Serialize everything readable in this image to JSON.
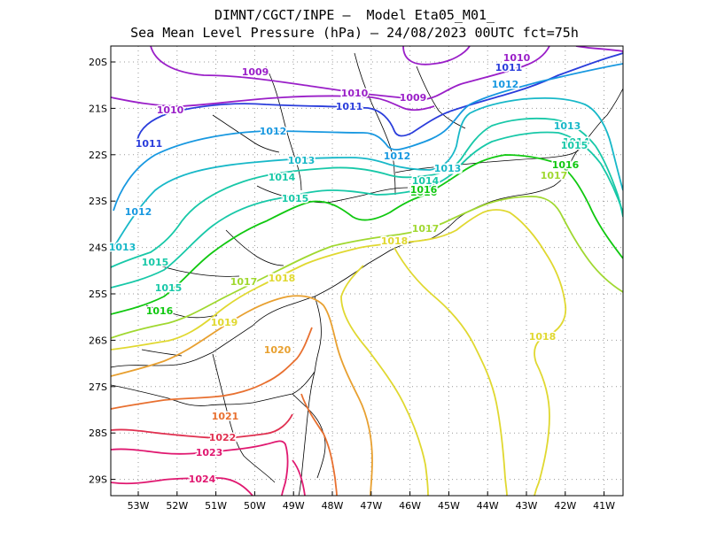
{
  "header": {
    "line1": "DIMNT/CGCT/INPE –  Model Eta05_M01_",
    "line2": "Sea Mean Level Pressure (hPa) – 24/08/2023 00UTC fct=75h"
  },
  "axes": {
    "lat_labels": [
      "20S",
      "21S",
      "22S",
      "23S",
      "24S",
      "25S",
      "26S",
      "27S",
      "28S",
      "29S"
    ],
    "lon_labels": [
      "53W",
      "52W",
      "51W",
      "50W",
      "49W",
      "48W",
      "47W",
      "46W",
      "45W",
      "44W",
      "43W",
      "42W",
      "41W"
    ]
  },
  "contour_labels": [
    {
      "text": "1010",
      "color": "#9a1fc8"
    },
    {
      "text": "1011",
      "color": "#2a3ddb"
    },
    {
      "text": "1009",
      "color": "#9a1fc8"
    },
    {
      "text": "1010",
      "color": "#9a1fc8"
    },
    {
      "text": "1010",
      "color": "#9a1fc8"
    },
    {
      "text": "1009",
      "color": "#9a1fc8"
    },
    {
      "text": "1011",
      "color": "#2a3ddb"
    },
    {
      "text": "1012",
      "color": "#1898e0"
    },
    {
      "text": "1011",
      "color": "#2a3ddb"
    },
    {
      "text": "1012",
      "color": "#1898e0"
    },
    {
      "text": "1012",
      "color": "#1898e0"
    },
    {
      "text": "1013",
      "color": "#18b8c8"
    },
    {
      "text": "1013",
      "color": "#18b8c8"
    },
    {
      "text": "1014",
      "color": "#18c8a8"
    },
    {
      "text": "1015",
      "color": "#18c8a8"
    },
    {
      "text": "1016",
      "color": "#10c810"
    },
    {
      "text": "1012",
      "color": "#1898e0"
    },
    {
      "text": "1013",
      "color": "#18b8c8"
    },
    {
      "text": "1013",
      "color": "#18b8c8"
    },
    {
      "text": "1014",
      "color": "#18c8a8"
    },
    {
      "text": "1015",
      "color": "#18c8a8"
    },
    {
      "text": "1015",
      "color": "#18c8a8"
    },
    {
      "text": "1016",
      "color": "#10c810"
    },
    {
      "text": "1016",
      "color": "#10c810"
    },
    {
      "text": "1017",
      "color": "#a0d830"
    },
    {
      "text": "1017",
      "color": "#a0d830"
    },
    {
      "text": "1017",
      "color": "#a0d830"
    },
    {
      "text": "1018",
      "color": "#e0d830"
    },
    {
      "text": "1018",
      "color": "#e0d830"
    },
    {
      "text": "1018",
      "color": "#e0d830"
    },
    {
      "text": "1019",
      "color": "#e0d830"
    },
    {
      "text": "1020",
      "color": "#e8a030"
    },
    {
      "text": "1021",
      "color": "#e87030"
    },
    {
      "text": "1022",
      "color": "#e03050"
    },
    {
      "text": "1023",
      "color": "#e01870"
    },
    {
      "text": "1024",
      "color": "#e01870"
    },
    {
      "text": "1014",
      "color": "#18c8a8"
    },
    {
      "text": "1015",
      "color": "#18c8a8"
    },
    {
      "text": "1016",
      "color": "#10c810"
    },
    {
      "text": "1013",
      "color": "#18b8c8"
    }
  ]
}
